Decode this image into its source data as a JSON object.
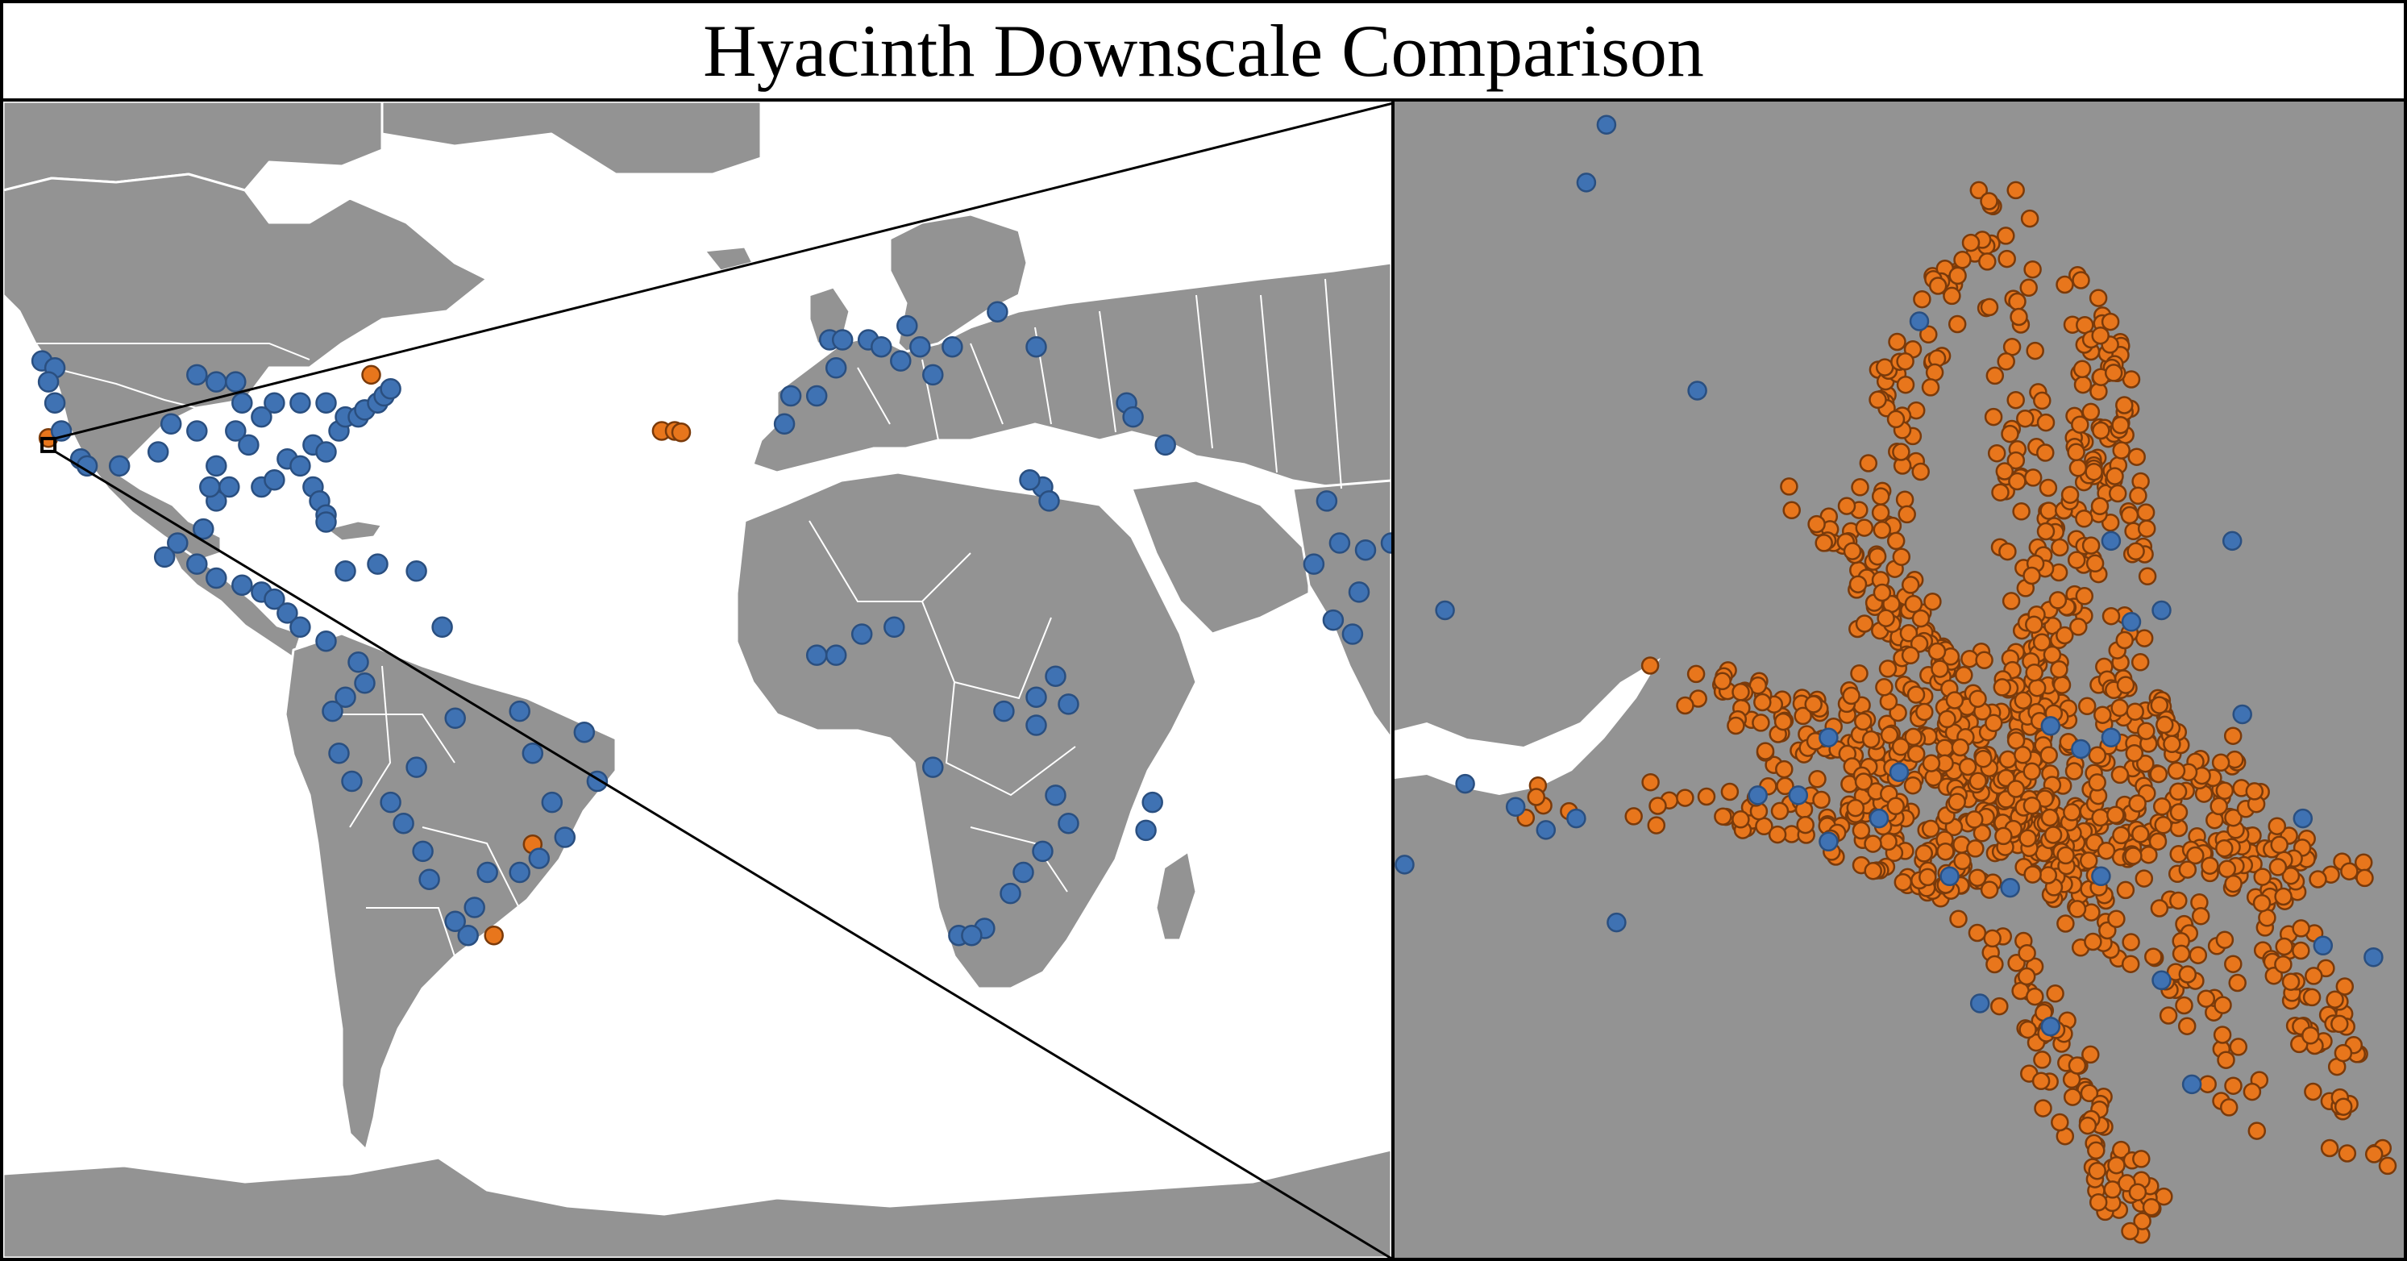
{
  "title": "Hyacinth Downscale Comparison",
  "colors": {
    "land": "#939393",
    "ocean": "#ffffff",
    "border": "#ffffff",
    "blue_point": "#3f72b3",
    "blue_point_edge": "#2a4f80",
    "orange_point": "#e8761c",
    "orange_point_edge": "#7a3a0a",
    "frame": "#000000"
  },
  "legend_series": [
    {
      "symbol": "blue-circle",
      "color": "#3f72b3"
    },
    {
      "symbol": "orange-circle",
      "color": "#e8761c"
    }
  ],
  "world_map": {
    "projection": "equirectangular",
    "extent_lon": [
      -130,
      85
    ],
    "extent_lat": [
      -80,
      85
    ],
    "inset_box_center": {
      "lon": -123,
      "lat": 36
    }
  },
  "world_points_blue": [
    [
      -124,
      48
    ],
    [
      -122,
      47
    ],
    [
      -123,
      45
    ],
    [
      -122,
      42
    ],
    [
      -121,
      38
    ],
    [
      -118,
      34
    ],
    [
      -117,
      33
    ],
    [
      -112,
      33
    ],
    [
      -106,
      35
    ],
    [
      -104,
      39
    ],
    [
      -100,
      38
    ],
    [
      -97,
      33
    ],
    [
      -95,
      30
    ],
    [
      -97,
      28
    ],
    [
      -90,
      30
    ],
    [
      -88,
      31
    ],
    [
      -86,
      34
    ],
    [
      -84,
      33
    ],
    [
      -82,
      30
    ],
    [
      -81,
      28
    ],
    [
      -80,
      26
    ],
    [
      -82,
      36
    ],
    [
      -80,
      35
    ],
    [
      -78,
      38
    ],
    [
      -77,
      40
    ],
    [
      -75,
      40
    ],
    [
      -74,
      41
    ],
    [
      -72,
      42
    ],
    [
      -71,
      43
    ],
    [
      -70,
      44
    ],
    [
      -80,
      42
    ],
    [
      -84,
      42
    ],
    [
      -88,
      42
    ],
    [
      -90,
      40
    ],
    [
      -93,
      42
    ],
    [
      -94,
      45
    ],
    [
      -97,
      45
    ],
    [
      -100,
      46
    ],
    [
      -92,
      36
    ],
    [
      -94,
      38
    ],
    [
      -98,
      30
    ],
    [
      -99,
      24
    ],
    [
      -103,
      22
    ],
    [
      -105,
      20
    ],
    [
      -100,
      19
    ],
    [
      -97,
      17
    ],
    [
      -93,
      16
    ],
    [
      -90,
      15
    ],
    [
      -88,
      14
    ],
    [
      -86,
      12
    ],
    [
      -84,
      10
    ],
    [
      -80,
      8
    ],
    [
      -77,
      18
    ],
    [
      -72,
      19
    ],
    [
      -66,
      18
    ],
    [
      -62,
      10
    ],
    [
      -75,
      5
    ],
    [
      -74,
      2
    ],
    [
      -77,
      0
    ],
    [
      -79,
      -2
    ],
    [
      -78,
      -8
    ],
    [
      -76,
      -12
    ],
    [
      -70,
      -15
    ],
    [
      -66,
      -10
    ],
    [
      -60,
      -3
    ],
    [
      -50,
      -2
    ],
    [
      -48,
      -8
    ],
    [
      -40,
      -5
    ],
    [
      -38,
      -12
    ],
    [
      -43,
      -20
    ],
    [
      -47,
      -23
    ],
    [
      -50,
      -25
    ],
    [
      -55,
      -25
    ],
    [
      -57,
      -30
    ],
    [
      -58,
      -34
    ],
    [
      -60,
      -32
    ],
    [
      -64,
      -26
    ],
    [
      -65,
      -22
    ],
    [
      -68,
      -18
    ],
    [
      -45,
      -15
    ],
    [
      -9,
      39
    ],
    [
      -8,
      43
    ],
    [
      -4,
      43
    ],
    [
      -1,
      47
    ],
    [
      -2,
      51
    ],
    [
      0,
      51
    ],
    [
      4,
      51
    ],
    [
      6,
      50
    ],
    [
      10,
      53
    ],
    [
      9,
      48
    ],
    [
      12,
      50
    ],
    [
      14,
      46
    ],
    [
      17,
      50
    ],
    [
      24,
      55
    ],
    [
      30,
      50
    ],
    [
      44,
      42
    ],
    [
      45,
      40
    ],
    [
      50,
      36
    ],
    [
      31,
      30
    ],
    [
      32,
      28
    ],
    [
      29,
      31
    ],
    [
      8,
      10
    ],
    [
      -4,
      6
    ],
    [
      -1,
      6
    ],
    [
      3,
      9
    ],
    [
      25,
      -2
    ],
    [
      30,
      0
    ],
    [
      33,
      3
    ],
    [
      35,
      -1
    ],
    [
      30,
      -4
    ],
    [
      14,
      -10
    ],
    [
      33,
      -14
    ],
    [
      35,
      -18
    ],
    [
      31,
      -22
    ],
    [
      28,
      -25
    ],
    [
      26,
      -28
    ],
    [
      22,
      -33
    ],
    [
      18,
      -34
    ],
    [
      20,
      -34
    ],
    [
      47,
      -19
    ],
    [
      48,
      -15
    ],
    [
      77,
      22
    ],
    [
      73,
      19
    ],
    [
      80,
      15
    ],
    [
      81,
      21
    ],
    [
      76,
      11
    ],
    [
      79,
      9
    ],
    [
      75,
      28
    ],
    [
      85,
      22
    ],
    [
      -80,
      25
    ]
  ],
  "world_points_orange": [
    [
      -73,
      46
    ],
    [
      -28,
      38
    ],
    [
      -26,
      38
    ],
    [
      -25,
      37.8
    ],
    [
      -48,
      -21
    ],
    [
      -54,
      -34
    ],
    [
      -123,
      37
    ]
  ],
  "zoom_points_blue": [
    [
      0.21,
      0.02
    ],
    [
      0.05,
      0.44
    ],
    [
      0.19,
      0.07
    ],
    [
      0.52,
      0.19
    ],
    [
      0.3,
      0.25
    ],
    [
      0.01,
      0.66
    ],
    [
      0.07,
      0.59
    ],
    [
      0.12,
      0.61
    ],
    [
      0.15,
      0.63
    ],
    [
      0.18,
      0.62
    ],
    [
      0.22,
      0.71
    ],
    [
      0.36,
      0.6
    ],
    [
      0.43,
      0.55
    ],
    [
      0.48,
      0.62
    ],
    [
      0.4,
      0.6
    ],
    [
      0.5,
      0.58
    ],
    [
      0.61,
      0.68
    ],
    [
      0.65,
      0.54
    ],
    [
      0.68,
      0.56
    ],
    [
      0.71,
      0.55
    ],
    [
      0.7,
      0.67
    ],
    [
      0.76,
      0.76
    ],
    [
      0.79,
      0.85
    ],
    [
      0.65,
      0.8
    ],
    [
      0.58,
      0.78
    ],
    [
      0.73,
      0.45
    ],
    [
      0.76,
      0.44
    ],
    [
      0.71,
      0.38
    ],
    [
      0.83,
      0.38
    ],
    [
      0.9,
      0.62
    ],
    [
      0.97,
      0.74
    ],
    [
      0.92,
      0.73
    ],
    [
      0.84,
      0.53
    ],
    [
      0.43,
      0.64
    ],
    [
      0.55,
      0.67
    ]
  ],
  "zoom_shape": {
    "core": [
      0.76,
      0.58
    ]
  }
}
